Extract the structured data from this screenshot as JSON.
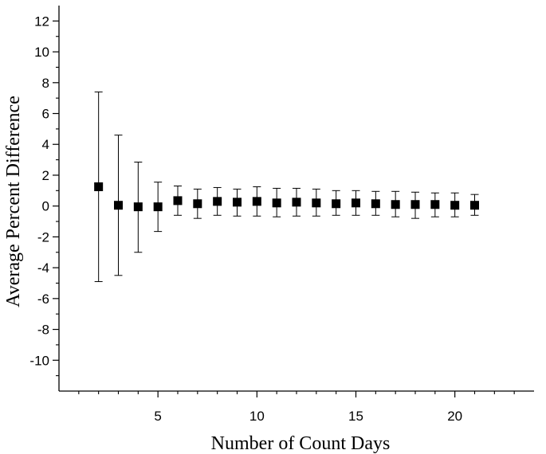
{
  "chart_data": {
    "type": "scatter",
    "title": "",
    "xlabel": "Number of Count Days",
    "ylabel": "Average Percent Difference",
    "xlim": [
      0,
      24
    ],
    "ylim": [
      -12,
      13
    ],
    "x_ticks": [
      5,
      10,
      15,
      20
    ],
    "x_tick_labels": [
      "5",
      "10",
      "15",
      "20"
    ],
    "x_minor_ticks": [
      1,
      2,
      3,
      4,
      6,
      7,
      8,
      9,
      11,
      12,
      13,
      14,
      16,
      17,
      18,
      19,
      21,
      22,
      23
    ],
    "y_ticks": [
      -10,
      -8,
      -6,
      -4,
      -2,
      0,
      2,
      4,
      6,
      8,
      10,
      12
    ],
    "y_tick_labels": [
      "-10",
      "-8",
      "-6",
      "-4",
      "-2",
      "0",
      "2",
      "4",
      "6",
      "8",
      "10",
      "12"
    ],
    "y_minor_ticks": [
      -11,
      -9,
      -7,
      -5,
      -3,
      -1,
      1,
      3,
      5,
      7,
      9,
      11
    ],
    "grid": false,
    "legend": "none",
    "marker": "square",
    "marker_color": "#000000",
    "series": [
      {
        "x": [
          2,
          3,
          4,
          5,
          6,
          7,
          8,
          9,
          10,
          11,
          12,
          13,
          14,
          15,
          16,
          17,
          18,
          19,
          20,
          21
        ],
        "y": [
          1.25,
          0.05,
          -0.05,
          -0.05,
          0.35,
          0.15,
          0.3,
          0.25,
          0.3,
          0.2,
          0.25,
          0.2,
          0.15,
          0.2,
          0.15,
          0.1,
          0.1,
          0.1,
          0.05,
          0.05
        ],
        "y_upper": [
          7.4,
          4.6,
          2.85,
          1.55,
          1.3,
          1.1,
          1.2,
          1.1,
          1.25,
          1.15,
          1.15,
          1.1,
          1.0,
          1.0,
          0.95,
          0.95,
          0.9,
          0.85,
          0.85,
          0.75
        ],
        "y_lower": [
          -4.9,
          -4.5,
          -3.0,
          -1.65,
          -0.6,
          -0.8,
          -0.6,
          -0.65,
          -0.65,
          -0.7,
          -0.65,
          -0.65,
          -0.6,
          -0.6,
          -0.6,
          -0.7,
          -0.8,
          -0.7,
          -0.7,
          -0.6
        ]
      }
    ]
  }
}
